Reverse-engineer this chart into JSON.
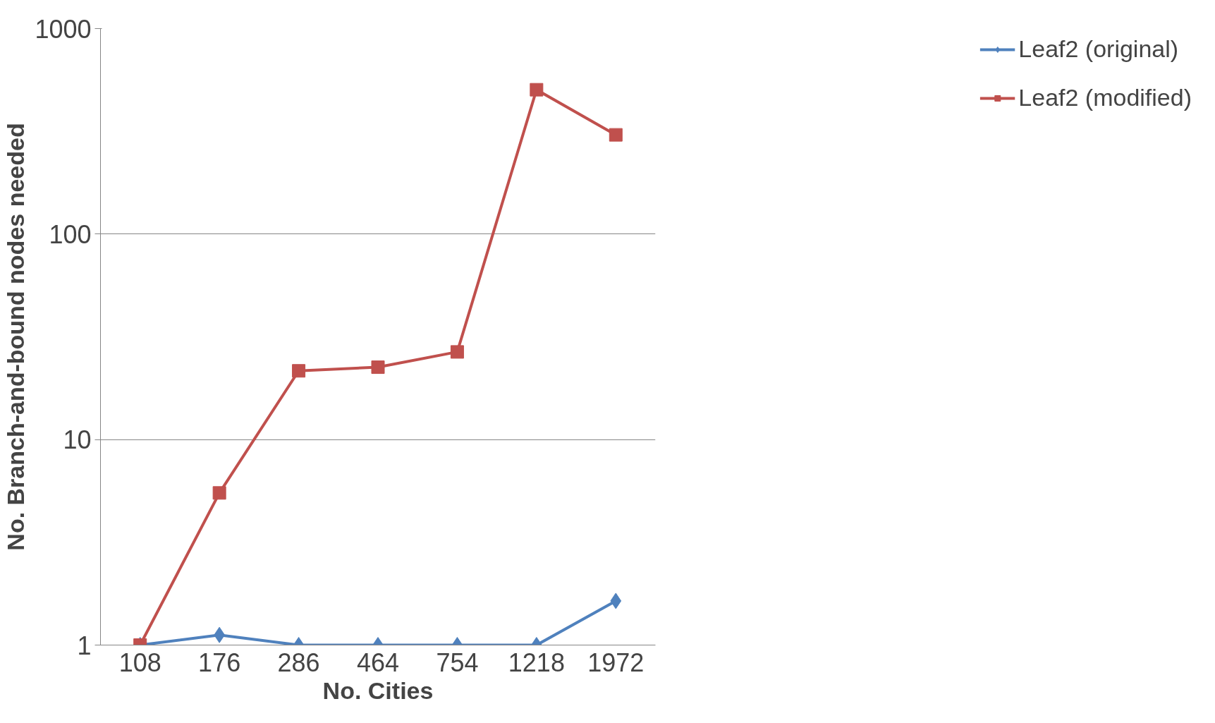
{
  "chart_data": {
    "type": "line",
    "xlabel": "No. Cities",
    "ylabel": "No. Branch-and-bound nodes needed",
    "categories": [
      "108",
      "176",
      "286",
      "464",
      "754",
      "1218",
      "1972"
    ],
    "series": [
      {
        "name": "Leaf2 (original)",
        "color": "#4f81bd",
        "marker": "diamond",
        "values": [
          1,
          1.12,
          1,
          1,
          1,
          1,
          1.64
        ]
      },
      {
        "name": "Leaf2 (modified)",
        "color": "#c0504d",
        "marker": "square",
        "values": [
          1,
          5.5,
          21.6,
          22.5,
          26.7,
          504,
          304
        ]
      }
    ],
    "log": "y",
    "ylim": [
      1,
      1000
    ],
    "yticks": [
      1,
      10,
      100,
      1000
    ],
    "grid": "y",
    "legend": "right"
  }
}
